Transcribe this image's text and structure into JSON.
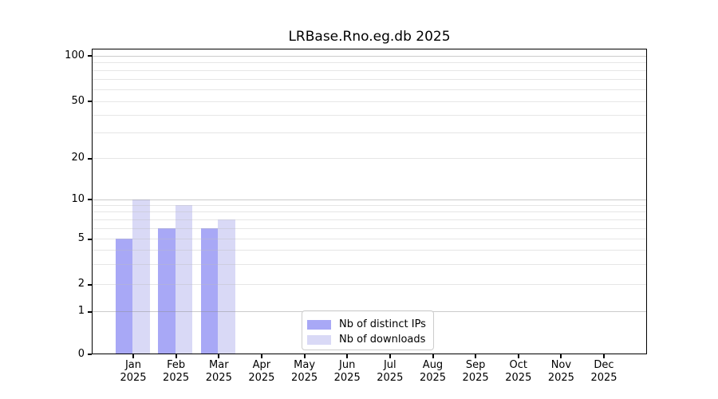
{
  "title": "LRBase.Rno.eg.db 2025",
  "colors": {
    "distinct_ips_bar": "#a8a8f6",
    "downloads_bar": "#d9d9f6",
    "axis": "#000000",
    "grid_major": "#d6d6d6",
    "grid_minor": "#ececec",
    "legend_border": "#cccccc"
  },
  "chart_data": {
    "type": "bar",
    "title": "LRBase.Rno.eg.db 2025",
    "categories": [
      "Jan",
      "Feb",
      "Mar",
      "Apr",
      "May",
      "Jun",
      "Jul",
      "Aug",
      "Sep",
      "Oct",
      "Nov",
      "Dec"
    ],
    "year_label": "2025",
    "series": [
      {
        "name": "Nb of distinct IPs",
        "color": "#a8a8f6",
        "values": [
          5,
          6,
          6,
          0,
          0,
          0,
          0,
          0,
          0,
          0,
          0,
          0
        ]
      },
      {
        "name": "Nb of downloads",
        "color": "#d9d9f6",
        "values": [
          10,
          9,
          7,
          0,
          0,
          0,
          0,
          0,
          0,
          0,
          0,
          0
        ]
      }
    ],
    "yscale": "symlog",
    "ylim": [
      0,
      110
    ],
    "y_ticks": [
      0,
      1,
      2,
      5,
      10,
      20,
      50,
      100
    ],
    "y_major_gridlines": [
      1,
      10,
      100
    ],
    "y_minor_gridlines": [
      2,
      3,
      4,
      5,
      6,
      7,
      8,
      9,
      20,
      30,
      40,
      50,
      60,
      70,
      80,
      90
    ],
    "grid": true,
    "legend_position": "lower center",
    "xlabel": "",
    "ylabel": ""
  }
}
